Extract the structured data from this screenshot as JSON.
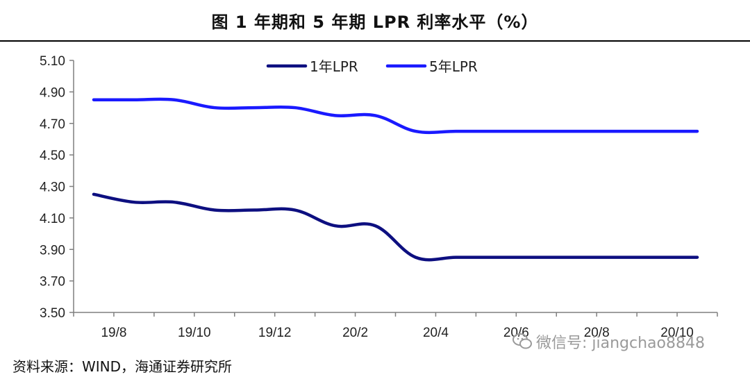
{
  "title": "图  1 年期和 5 年期 LPR 利率水平（%）",
  "source": "资料来源：WIND，海通证券研究所",
  "watermark": {
    "text": "微信号: jiangchao8848",
    "icon": "wechat-icon"
  },
  "colors": {
    "one_year": "#0d0f80",
    "five_year": "#1a1aff",
    "axis": "#7f7f7f"
  },
  "chart_data": {
    "type": "line",
    "title": "1 年期和 5 年期 LPR 利率水平（%）",
    "xlabel": "",
    "ylabel": "",
    "ylim": [
      3.5,
      5.1
    ],
    "yticks": [
      "5.10",
      "4.90",
      "4.70",
      "4.50",
      "4.30",
      "4.10",
      "3.90",
      "3.70",
      "3.50"
    ],
    "xticks": [
      "19/8",
      "19/10",
      "19/12",
      "20/2",
      "20/4",
      "20/6",
      "20/8",
      "20/10"
    ],
    "grid": false,
    "legend": "top-center",
    "x": [
      "19/8",
      "19/9",
      "19/10",
      "19/11",
      "19/12",
      "20/1",
      "20/2",
      "20/3",
      "20/4",
      "20/5",
      "20/6",
      "20/7",
      "20/8",
      "20/9",
      "20/10",
      "20/11"
    ],
    "series": [
      {
        "name": "1年LPR",
        "values": [
          4.25,
          4.2,
          4.2,
          4.15,
          4.15,
          4.15,
          4.05,
          4.05,
          3.85,
          3.85,
          3.85,
          3.85,
          3.85,
          3.85,
          3.85,
          3.85
        ]
      },
      {
        "name": "5年LPR",
        "values": [
          4.85,
          4.85,
          4.85,
          4.8,
          4.8,
          4.8,
          4.75,
          4.75,
          4.65,
          4.65,
          4.65,
          4.65,
          4.65,
          4.65,
          4.65,
          4.65
        ]
      }
    ]
  }
}
